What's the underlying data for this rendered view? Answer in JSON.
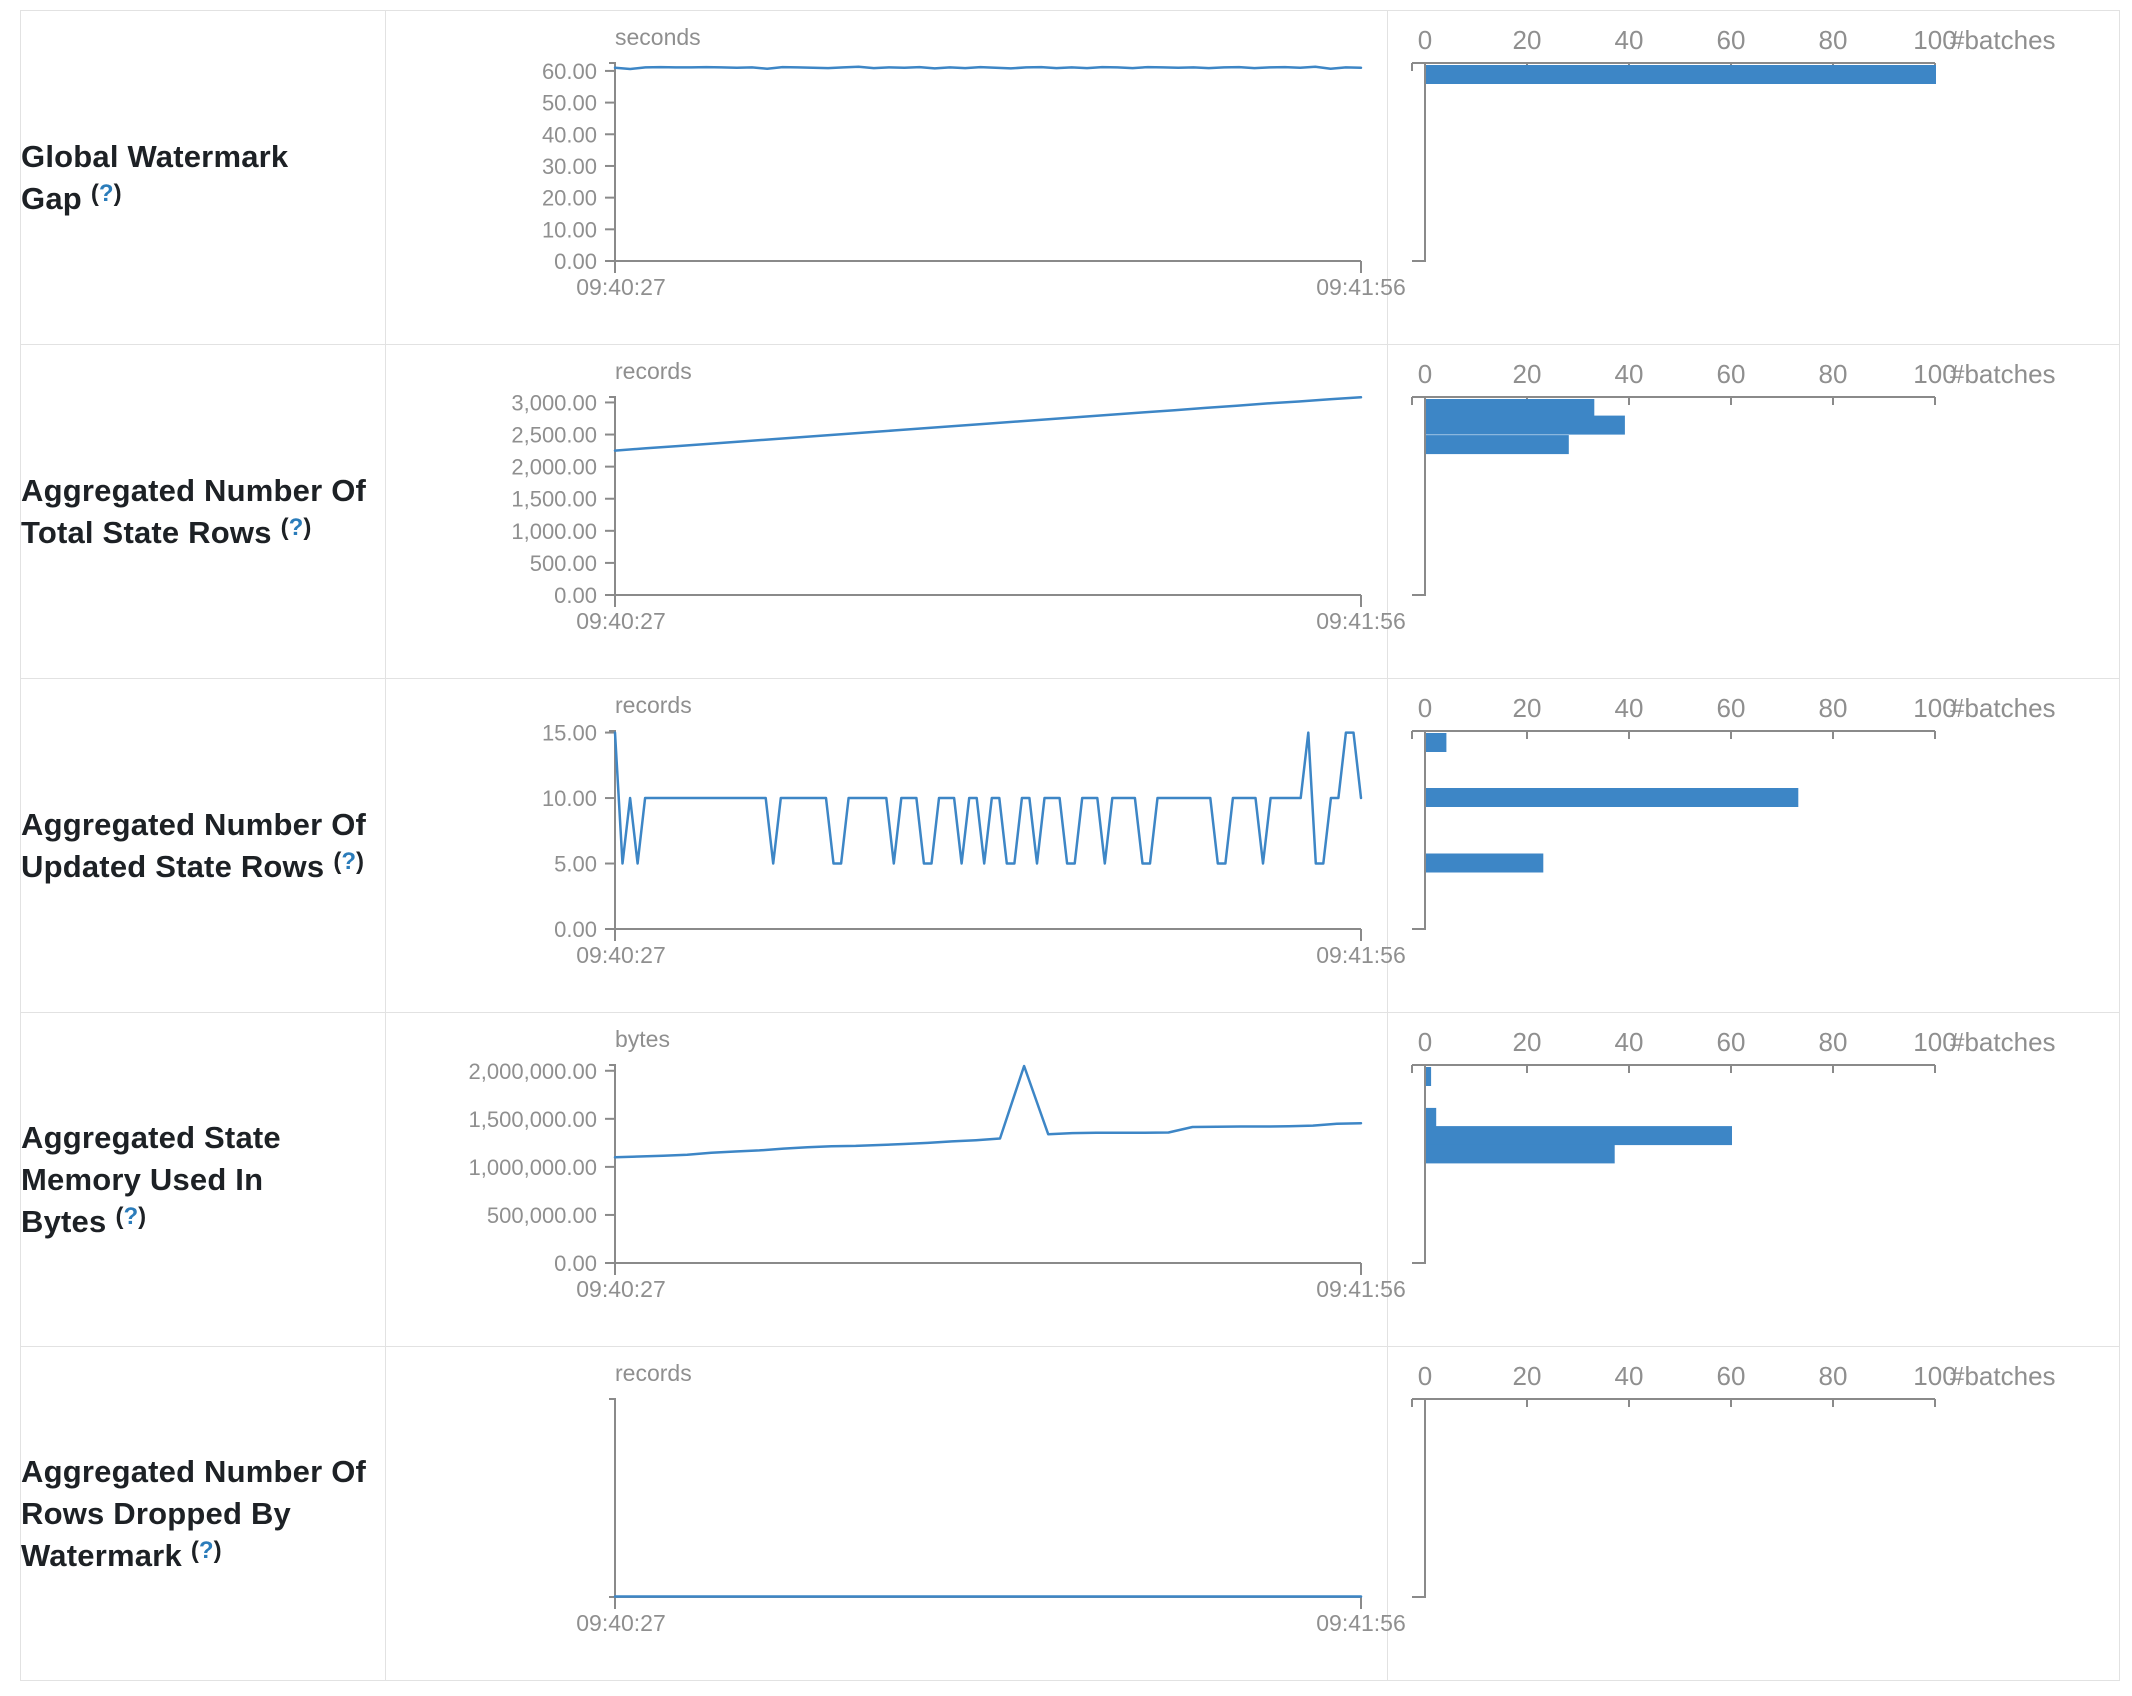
{
  "help": {
    "open": "(",
    "q": "?",
    "close": ")"
  },
  "colors": {
    "accent": "#3d86c6",
    "axis": "#8a8a8a",
    "tick_text": "#8f8f8f",
    "label_text": "#1d2125",
    "help_blue": "#2b7cba",
    "border": "#e2e2e2",
    "background": "#ffffff"
  },
  "rows": [
    {
      "title": "Global Watermark Gap"
    },
    {
      "title": "Aggregated Number Of Total State Rows"
    },
    {
      "title": "Aggregated Number Of Updated State Rows"
    },
    {
      "title": "Aggregated State Memory Used In Bytes"
    },
    {
      "title": "Aggregated Number Of Rows Dropped By Watermark"
    }
  ],
  "hist_axis": {
    "ticks": [
      [
        0,
        "0"
      ],
      [
        20,
        "20"
      ],
      [
        40,
        "40"
      ],
      [
        60,
        "60"
      ],
      [
        80,
        "80"
      ],
      [
        100,
        "100"
      ]
    ],
    "label": "#batches"
  },
  "chart_data": [
    {
      "name": "global-watermark-gap",
      "timeline": {
        "type": "line",
        "unit": "seconds",
        "x_start": "09:40:27",
        "x_end": "09:41:56",
        "ymax": 62.5,
        "yticks": [
          [
            60,
            "60.00"
          ],
          [
            50,
            "50.00"
          ],
          [
            40,
            "40.00"
          ],
          [
            30,
            "30.00"
          ],
          [
            20,
            "20.00"
          ],
          [
            10,
            "10.00"
          ],
          [
            0,
            "0.00"
          ]
        ],
        "values": [
          61,
          60.6,
          61.1,
          61.2,
          61.1,
          61.1,
          61.2,
          61.1,
          61,
          61.1,
          60.7,
          61.2,
          61.1,
          61,
          60.9,
          61.1,
          61.3,
          60.9,
          61.1,
          61,
          61.2,
          60.8,
          61.1,
          60.9,
          61.2,
          61,
          60.8,
          61.1,
          61.2,
          60.9,
          61.1,
          60.9,
          61.2,
          61.1,
          60.9,
          61.2,
          61.1,
          61,
          61.1,
          60.9,
          61.1,
          61.2,
          60.9,
          61.1,
          61.2,
          61,
          61.3,
          60.7,
          61.1,
          61
        ]
      },
      "histogram": {
        "type": "bar",
        "unit": "#batches",
        "bins": [
          {
            "value": 60.5,
            "count": 100
          }
        ]
      }
    },
    {
      "name": "aggregated-number-of-total-state-rows",
      "timeline": {
        "type": "line",
        "unit": "records",
        "x_start": "09:40:27",
        "x_end": "09:41:56",
        "ymax": 3085,
        "yticks": [
          [
            3000,
            "3,000.00"
          ],
          [
            2500,
            "2,500.00"
          ],
          [
            2000,
            "2,000.00"
          ],
          [
            1500,
            "1,500.00"
          ],
          [
            1000,
            "1,000.00"
          ],
          [
            500,
            "500.00"
          ],
          [
            0,
            "0.00"
          ]
        ],
        "values": [
          2250,
          2285,
          2320,
          2355,
          2390,
          2425,
          2460,
          2495,
          2530,
          2565,
          2600,
          2635,
          2670,
          2705,
          2740,
          2775,
          2810,
          2845,
          2880,
          2915,
          2950,
          2985,
          3015,
          3050,
          3080
        ]
      },
      "histogram": {
        "type": "bar",
        "unit": "#batches",
        "bins": [
          {
            "value": 2950,
            "count": 33
          },
          {
            "value": 2640,
            "count": 39
          },
          {
            "value": 2335,
            "count": 28
          }
        ]
      }
    },
    {
      "name": "aggregated-number-of-updated-state-rows",
      "timeline": {
        "type": "line",
        "unit": "records",
        "x_start": "09:40:27",
        "x_end": "09:41:56",
        "ymax": 15.12,
        "yticks": [
          [
            15,
            "15.00"
          ],
          [
            10,
            "10.00"
          ],
          [
            5,
            "5.00"
          ],
          [
            0,
            "0.00"
          ]
        ],
        "values": [
          15,
          5,
          10,
          5,
          10,
          10,
          10,
          10,
          10,
          10,
          10,
          10,
          10,
          10,
          10,
          10,
          10,
          10,
          10,
          10,
          10,
          5,
          10,
          10,
          10,
          10,
          10,
          10,
          10,
          5,
          5,
          10,
          10,
          10,
          10,
          10,
          10,
          5,
          10,
          10,
          10,
          5,
          5,
          10,
          10,
          10,
          5,
          10,
          10,
          5,
          10,
          10,
          5,
          5,
          10,
          10,
          5,
          10,
          10,
          10,
          5,
          5,
          10,
          10,
          10,
          5,
          10,
          10,
          10,
          10,
          5,
          5,
          10,
          10,
          10,
          10,
          10,
          10,
          10,
          10,
          5,
          5,
          10,
          10,
          10,
          10,
          5,
          10,
          10,
          10,
          10,
          10,
          15,
          5,
          5,
          10,
          10,
          15,
          15,
          10
        ]
      },
      "histogram": {
        "type": "bar",
        "unit": "#batches",
        "bins": [
          {
            "value": 15,
            "count": 4
          },
          {
            "value": 10,
            "count": 73
          },
          {
            "value": 5,
            "count": 23
          }
        ]
      }
    },
    {
      "name": "aggregated-state-memory-used-in-bytes",
      "timeline": {
        "type": "line",
        "unit": "bytes",
        "x_start": "09:40:27",
        "x_end": "09:41:56",
        "ymax": 2060000,
        "yticks": [
          [
            2000000,
            "2,000,000.00"
          ],
          [
            1500000,
            "1,500,000.00"
          ],
          [
            1000000,
            "1,000,000.00"
          ],
          [
            500000,
            "500,000.00"
          ],
          [
            0,
            "0.00"
          ]
        ],
        "values": [
          1100000,
          1108000,
          1116000,
          1126000,
          1148000,
          1160000,
          1172000,
          1190000,
          1205000,
          1215000,
          1218000,
          1228000,
          1238000,
          1250000,
          1265000,
          1278000,
          1295000,
          2050000,
          1340000,
          1352000,
          1355000,
          1355000,
          1356000,
          1358000,
          1415000,
          1418000,
          1420000,
          1420000,
          1422000,
          1430000,
          1448000,
          1455000
        ]
      },
      "histogram": {
        "type": "bar",
        "unit": "#batches",
        "bins": [
          {
            "value": 2050000,
            "count": 1
          },
          {
            "value": 1510000,
            "count": 2
          },
          {
            "value": 1320000,
            "count": 60
          },
          {
            "value": 1130000,
            "count": 37
          }
        ]
      }
    },
    {
      "name": "aggregated-number-of-rows-dropped-by-watermark",
      "timeline": {
        "type": "line",
        "unit": "records",
        "x_start": "09:40:27",
        "x_end": "09:41:56",
        "ymax": 1,
        "yticks": [],
        "values": [
          0,
          0,
          0,
          0,
          0,
          0,
          0,
          0,
          0,
          0,
          0,
          0,
          0,
          0,
          0,
          0,
          0,
          0,
          0,
          0,
          0,
          0,
          0,
          0,
          0
        ]
      },
      "histogram": {
        "type": "bar",
        "unit": "#batches",
        "bins": []
      }
    }
  ]
}
